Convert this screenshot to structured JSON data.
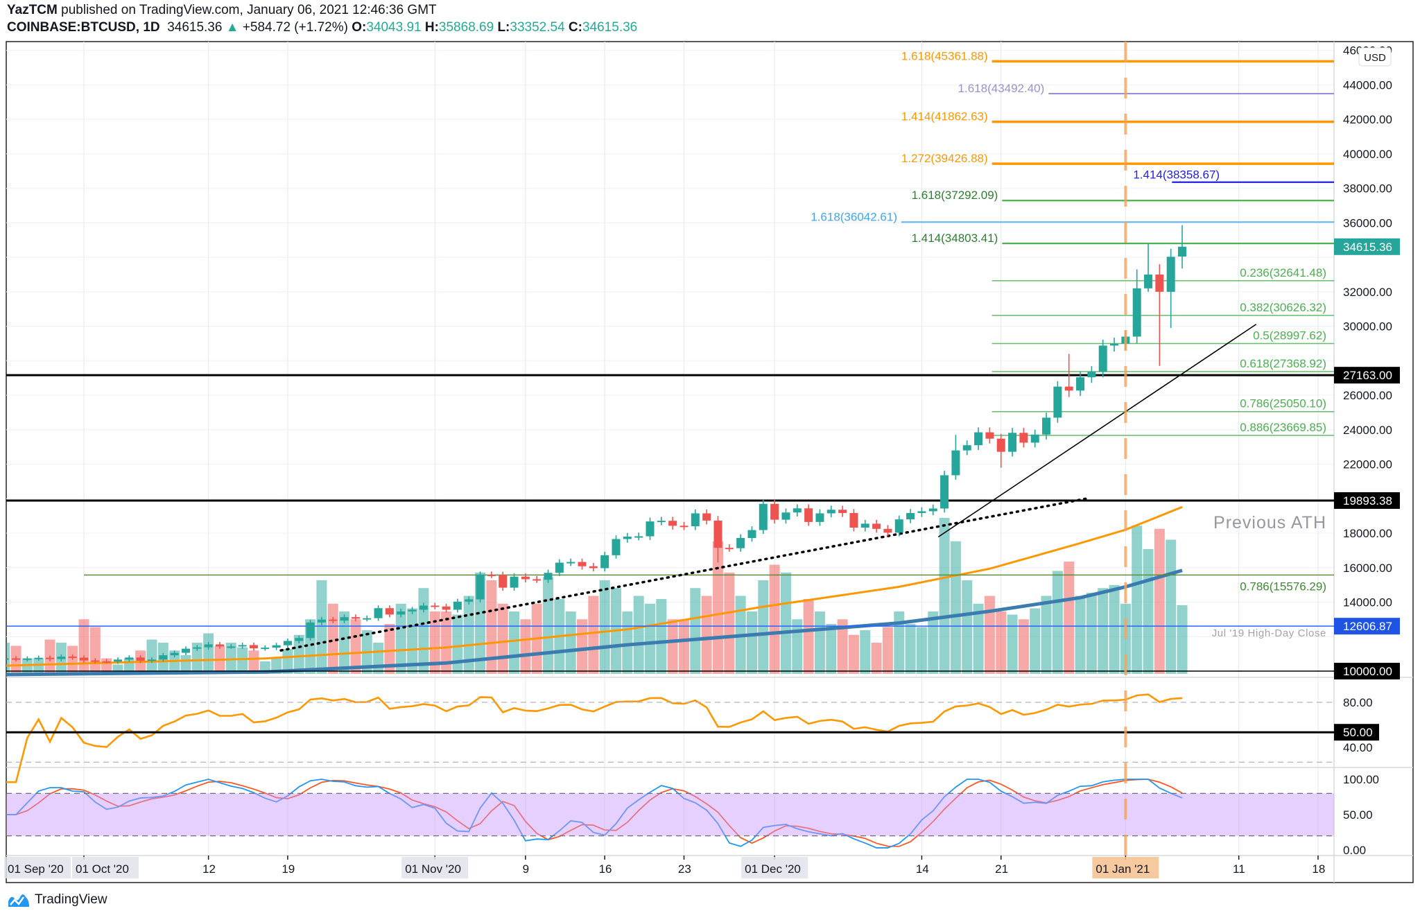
{
  "header": {
    "author": "YazTCM",
    "published": "published on TradingView.com, January 06, 2021 12:46:36 GMT",
    "symbol": "COINBASE:BTCUSD, 1D",
    "last": "34615.36",
    "change": "+584.72 (+1.72%)",
    "o_label": "O:",
    "o": "34043.91",
    "h_label": "H:",
    "h": "35868.69",
    "l_label": "L:",
    "l": "33352.54",
    "c_label": "C:",
    "c": "34615.36"
  },
  "footer": {
    "brand": "TradingView"
  },
  "colors": {
    "up": "#26a69a",
    "down": "#ef5350",
    "ma_fast": "#ff9800",
    "ma_slow": "#3a7bb0",
    "rsi": "#ff9800",
    "stoch_k": "#2196f3",
    "stoch_d": "#ff5722"
  },
  "chart_data": {
    "type": "candlestick",
    "symbol": "COINBASE:BTCUSD",
    "interval": "1D",
    "currency": "USD",
    "first_date": "2020-09-24",
    "closes": [
      10740,
      10690,
      10730,
      10775,
      10700,
      10840,
      10780,
      10620,
      10570,
      10550,
      10670,
      10790,
      10600,
      10670,
      10920,
      11060,
      11300,
      11380,
      11550,
      11430,
      11430,
      11510,
      11320,
      11360,
      11500,
      11750,
      11920,
      12820,
      12990,
      12930,
      13130,
      13040,
      13070,
      13650,
      13280,
      13460,
      13560,
      13800,
      13750,
      13560,
      14030,
      14160,
      15590,
      15580,
      14840,
      15480,
      15330,
      15300,
      15700,
      16290,
      16330,
      16080,
      15970,
      16720,
      17660,
      17800,
      17820,
      18680,
      18720,
      18430,
      18400,
      19150,
      18730,
      17150,
      17130,
      17720,
      18180,
      19700,
      18780,
      19200,
      19440,
      18650,
      19150,
      19360,
      19170,
      18320,
      18550,
      18250,
      18030,
      18800,
      19170,
      19270,
      19430,
      21360,
      22800,
      23100,
      23850,
      23480,
      22720,
      23820,
      23250,
      23720,
      24700,
      26500,
      26270,
      27040,
      27360,
      28880,
      28990,
      29400,
      32200,
      33000,
      32000,
      34030.64,
      34615.36
    ],
    "ohl_overrides": [
      [
        104,
        34043.91,
        35868.69,
        33352.54
      ],
      [
        103,
        null,
        34500,
        29900
      ],
      [
        102,
        null,
        33600,
        27700
      ],
      [
        101,
        null,
        34800,
        32000
      ],
      [
        100,
        null,
        33300,
        29000
      ],
      [
        94,
        null,
        28400,
        25900
      ],
      [
        84,
        null,
        23700,
        null
      ],
      [
        88,
        null,
        null,
        21800
      ],
      [
        63,
        null,
        19000,
        16300
      ]
    ],
    "volume_relative": [
      20,
      18,
      10,
      10,
      22,
      20,
      18,
      35,
      30,
      10,
      6,
      10,
      15,
      22,
      20,
      15,
      12,
      20,
      26,
      18,
      20,
      17,
      15,
      8,
      10,
      16,
      25,
      35,
      60,
      45,
      40,
      35,
      28,
      20,
      32,
      45,
      42,
      55,
      40,
      40,
      38,
      50,
      65,
      60,
      45,
      40,
      35,
      45,
      62,
      48,
      40,
      35,
      50,
      60,
      55,
      40,
      50,
      45,
      48,
      35,
      35,
      55,
      50,
      85,
      65,
      50,
      40,
      60,
      70,
      65,
      35,
      48,
      40,
      32,
      35,
      25,
      28,
      20,
      30,
      40,
      32,
      30,
      40,
      100,
      85,
      60,
      45,
      50,
      40,
      38,
      35,
      42,
      50,
      66,
      72,
      50,
      52,
      55,
      57,
      45,
      95,
      80,
      93,
      86,
      44
    ],
    "ma_fast": [
      [
        0,
        10316
      ],
      [
        23,
        10736
      ],
      [
        39,
        11370
      ],
      [
        55,
        12420
      ],
      [
        67,
        13735
      ],
      [
        79,
        14890
      ],
      [
        87,
        15940
      ],
      [
        95,
        17420
      ],
      [
        99,
        18200
      ],
      [
        104,
        19520
      ]
    ],
    "ma_slow": [
      [
        0,
        9800
      ],
      [
        23,
        9950
      ],
      [
        39,
        10470
      ],
      [
        55,
        11525
      ],
      [
        67,
        12155
      ],
      [
        79,
        12790
      ],
      [
        87,
        13470
      ],
      [
        95,
        14260
      ],
      [
        99,
        14890
      ],
      [
        104,
        15840
      ]
    ],
    "price_axis": {
      "min": 10000,
      "max": 46000,
      "step": 2000,
      "unit_label": "USD"
    },
    "price_badges": [
      {
        "text": "34615.36",
        "price": 34615.36,
        "bg": "#26a69a"
      },
      {
        "text": "27163.00",
        "price": 27163,
        "bg": "#000000"
      },
      {
        "text": "19893.38",
        "price": 19893.38,
        "bg": "#000000"
      },
      {
        "text": "12606.87",
        "price": 12606.87,
        "bg": "#1e53e5"
      },
      {
        "text": "10000.00",
        "price": 10000,
        "bg": "#000000"
      }
    ],
    "levels": [
      {
        "label": "1.618(45361.88)",
        "price": 45361.88,
        "color": "#ff9800",
        "from_day": 87.2,
        "label_side": "left",
        "weight": "thick"
      },
      {
        "label": "1.618(43492.40)",
        "price": 43492.4,
        "color": "#9c8fd1",
        "from_day": 92.2,
        "label_side": "left",
        "weight": "normal"
      },
      {
        "label": "1.414(41862.63)",
        "price": 41862.63,
        "color": "#ff9800",
        "from_day": 87.2,
        "label_side": "left",
        "weight": "thick"
      },
      {
        "label": "1.272(39426.88)",
        "price": 39426.88,
        "color": "#ff9800",
        "from_day": 87.2,
        "label_side": "left",
        "weight": "thick"
      },
      {
        "label": "1.414(38358.67)",
        "price": 38358.67,
        "color": "#1f1fe0",
        "from_day": 103.1,
        "label_side": "above-left",
        "weight": "normal"
      },
      {
        "label": "1.618(37292.09)",
        "price": 37292.09,
        "color": "#4caf50",
        "from_day": 88.1,
        "label_side": "left",
        "weight": "normal",
        "text_color": "#2e7d32"
      },
      {
        "label": "1.618(36042.61)",
        "price": 36042.61,
        "color": "#64b5f6",
        "from_day": 79.2,
        "label_side": "left",
        "weight": "normal",
        "text_color": "#42a5f5"
      },
      {
        "label": "1.414(34803.41)",
        "price": 34803.41,
        "color": "#4caf50",
        "from_day": 88.1,
        "label_side": "left",
        "weight": "normal",
        "text_color": "#2e7d32"
      },
      {
        "label": "0.236(32641.48)",
        "price": 32641.48,
        "color": "#66bb6a",
        "from_day": 87.2,
        "label_side": "right",
        "weight": "thin",
        "text_color": "#4caf50"
      },
      {
        "label": "0.382(30626.32)",
        "price": 30626.32,
        "color": "#66bb6a",
        "from_day": 87.2,
        "label_side": "right",
        "weight": "thin",
        "text_color": "#4caf50"
      },
      {
        "label": "0.5(28997.62)",
        "price": 28997.62,
        "color": "#66bb6a",
        "from_day": 87.2,
        "label_side": "right",
        "weight": "thin",
        "text_color": "#4caf50"
      },
      {
        "label": "0.618(27368.92)",
        "price": 27368.92,
        "color": "#66bb6a",
        "from_day": 87.2,
        "label_side": "right",
        "weight": "thin",
        "text_color": "#4caf50"
      },
      {
        "label": "0.786(25050.10)",
        "price": 25050.1,
        "color": "#66bb6a",
        "from_day": 87.2,
        "label_side": "right",
        "weight": "thin",
        "text_color": "#4caf50"
      },
      {
        "label": "0.886(23669.85)",
        "price": 23669.85,
        "color": "#66bb6a",
        "from_day": 87.2,
        "label_side": "right",
        "weight": "thin",
        "text_color": "#4caf50"
      },
      {
        "label": "0.786(15576.29)",
        "price": 15576.29,
        "color": "#5b8c3a",
        "from_day": 7,
        "label_side": "right-below",
        "weight": "thin",
        "text_color": "#3d8b2f"
      }
    ],
    "horizontal_lines": [
      {
        "price": 27163,
        "color": "#000000",
        "weight": "thick"
      },
      {
        "price": 19893.38,
        "color": "#000000",
        "weight": "thick"
      },
      {
        "price": 12606.87,
        "color": "#2962ff",
        "weight": "thin"
      },
      {
        "price": 10000,
        "color": "#000000",
        "weight": "thin"
      }
    ],
    "annotations": [
      {
        "text": "Previous ATH",
        "price": 18600,
        "style": "large"
      },
      {
        "text": "Jul '19 High-Day Close",
        "price": 12250,
        "style": "small"
      }
    ],
    "trendlines": [
      {
        "from": [
          82.5,
          17800
        ],
        "to": [
          110.5,
          30100
        ],
        "style": "solid"
      },
      {
        "from": [
          24.4,
          11200
        ],
        "to": [
          95.5,
          20000
        ],
        "style": "dotted"
      }
    ],
    "vertical_marker_day": 99,
    "time_axis": [
      {
        "label": "01 Sep '20",
        "day": -1.2,
        "boxed": true
      },
      {
        "label": "01 Oct '20",
        "day": 7,
        "boxed": true
      },
      {
        "label": "12",
        "day": 18
      },
      {
        "label": "19",
        "day": 25
      },
      {
        "label": "01 Nov '20",
        "day": 38,
        "boxed": true
      },
      {
        "label": "9",
        "day": 46
      },
      {
        "label": "16",
        "day": 53
      },
      {
        "label": "23",
        "day": 60
      },
      {
        "label": "01 Dec '20",
        "day": 68,
        "boxed": true
      },
      {
        "label": "14",
        "day": 81
      },
      {
        "label": "21",
        "day": 88
      },
      {
        "label": "01 Jan '21",
        "day": 99,
        "boxed": true,
        "highlight": true
      },
      {
        "label": "11",
        "day": 109
      },
      {
        "label": "18",
        "day": 116
      }
    ],
    "rsi": {
      "period": 14,
      "axis_labels": [
        "80.00",
        "40.00"
      ],
      "axis_values": [
        80,
        40
      ],
      "level_badge": "50.00",
      "level": 50,
      "dashed": [
        80,
        20
      ]
    },
    "stoch_rsi": {
      "axis_labels": [
        "100.00",
        "50.00",
        "0.00"
      ],
      "axis_values": [
        100,
        50,
        0
      ],
      "band": [
        20,
        80
      ]
    }
  }
}
